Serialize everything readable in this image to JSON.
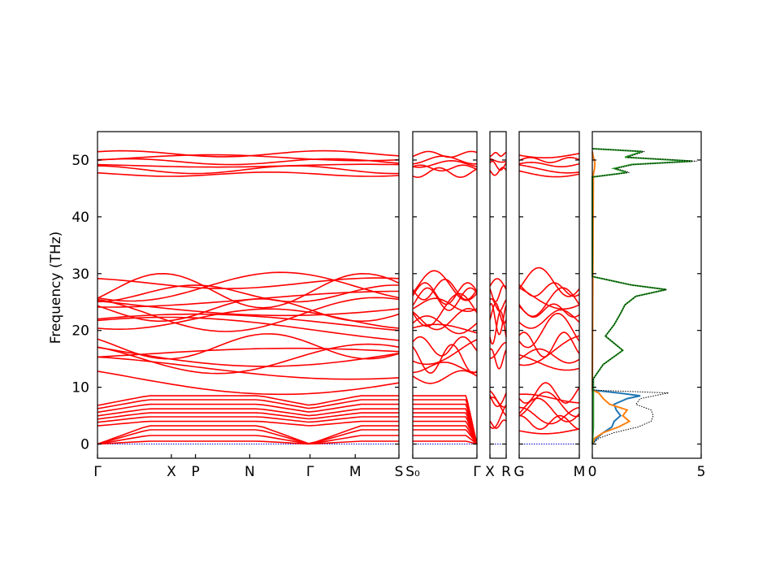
{
  "chart_data": {
    "type": "line",
    "ylabel": "Frequency (THz)",
    "ylim": [
      -2.5,
      55
    ],
    "y_ticks": [
      "0",
      "10",
      "20",
      "30",
      "40",
      "50"
    ],
    "band_color": "#ff0000",
    "zero_line_color": "#0000cc",
    "panels": [
      {
        "id": "path-1",
        "x_labels": [
          "Γ",
          "X",
          "P",
          "N",
          "Γ",
          "M",
          "S"
        ],
        "x_label_frac": [
          0,
          0.245,
          0.325,
          0.505,
          0.705,
          0.855,
          1.0
        ],
        "band_centers": [
          0.5,
          1.5,
          2.5,
          3.2,
          4.0,
          4.8,
          5.5,
          6.2,
          7.0,
          7.8,
          8.5,
          11.8,
          13.5,
          15.0,
          15.8,
          16.5,
          17.2,
          20.0,
          21.0,
          22.0,
          22.8,
          23.6,
          24.5,
          25.5,
          26.5,
          27.0,
          27.7,
          28.3,
          47.5,
          48.3,
          49.0,
          49.7,
          50.4,
          51.1
        ]
      },
      {
        "id": "path-2",
        "x_labels": [
          "S₀",
          "Γ"
        ],
        "x_label_frac": [
          0,
          1.0
        ],
        "band_centers": [
          0.5,
          1.5,
          2.5,
          3.2,
          4.0,
          4.8,
          5.5,
          6.2,
          7.0,
          7.8,
          8.5,
          11.8,
          13.5,
          15.0,
          16.5,
          17.2,
          20.0,
          21.0,
          22.0,
          23.6,
          24.5,
          25.5,
          26.5,
          27.2,
          27.9,
          47.8,
          48.6,
          49.3,
          50.0,
          51.0
        ]
      },
      {
        "id": "path-3",
        "x_labels": [
          "X",
          "R"
        ],
        "x_label_frac": [
          0,
          1.0
        ],
        "band_centers": [
          3.5,
          5.0,
          6.5,
          8.0,
          8.8,
          15.0,
          16.5,
          20.5,
          22.0,
          23.0,
          24.5,
          26.5,
          27.5,
          48.0,
          49.0,
          50.0,
          51.0
        ]
      },
      {
        "id": "path-4",
        "x_labels": [
          "G",
          "M"
        ],
        "x_label_frac": [
          0,
          1.0
        ],
        "band_centers": [
          2.5,
          3.8,
          5.0,
          6.0,
          7.0,
          8.0,
          9.0,
          14.5,
          15.5,
          16.5,
          17.5,
          20.0,
          22.0,
          23.5,
          25.0,
          26.0,
          27.2,
          28.5,
          47.8,
          48.5,
          49.2,
          50.0,
          51.0
        ]
      }
    ],
    "dos": {
      "xlim": [
        0,
        5
      ],
      "x_ticks": [
        "0",
        "5"
      ],
      "series": [
        {
          "color": "#1f77b4",
          "frequencies": [
            0,
            1,
            2,
            3,
            4,
            5,
            6,
            7,
            8,
            8.5,
            9,
            9.5
          ],
          "values": [
            0,
            0.2,
            0.5,
            0.9,
            1.0,
            1.3,
            1.1,
            1.0,
            1.6,
            2.2,
            1.2,
            0
          ]
        },
        {
          "color": "#ff7f0e",
          "frequencies": [
            0,
            1,
            2,
            3,
            4,
            5,
            6,
            7,
            8,
            8.5,
            9,
            9.5,
            47.5,
            48.5,
            49.5,
            50.5,
            51.5
          ],
          "values": [
            0,
            0.1,
            0.5,
            1.2,
            1.7,
            1.4,
            1.6,
            0.8,
            0.5,
            0.4,
            0.3,
            0,
            0.05,
            0.1,
            0.12,
            0.05,
            0
          ]
        },
        {
          "color": "#2ca02c",
          "frequencies": [
            0,
            3,
            6,
            9,
            11.5,
            14,
            16.5,
            19,
            21,
            23,
            24.5,
            26,
            27.2,
            28,
            29.5,
            47,
            47.8,
            48.5,
            49.2,
            49.8,
            50.5,
            51.5,
            52
          ],
          "values": [
            0,
            0.05,
            0.05,
            0.05,
            0.05,
            0.5,
            1.4,
            0.6,
            1.0,
            1.3,
            1.5,
            2.0,
            3.4,
            1.8,
            0,
            0,
            1.6,
            1.0,
            1.8,
            4.6,
            1.5,
            2.3,
            0
          ]
        },
        {
          "color": "#000000",
          "dashed": true,
          "frequencies": [
            0,
            1,
            2,
            3,
            4,
            5,
            6,
            7,
            8,
            9,
            9.5,
            11.5,
            14,
            16.5,
            19,
            21,
            23,
            24.5,
            26,
            27.2,
            28,
            29.5,
            47,
            47.8,
            48.5,
            49.2,
            49.8,
            50.5,
            51.5,
            52
          ],
          "values": [
            0,
            0.3,
            1.0,
            2.1,
            2.7,
            2.8,
            2.7,
            2.0,
            2.2,
            3.5,
            0,
            0.05,
            0.5,
            1.4,
            0.6,
            1.0,
            1.3,
            1.5,
            2.0,
            3.4,
            1.8,
            0,
            0,
            1.7,
            1.1,
            1.9,
            4.8,
            1.6,
            2.4,
            0
          ]
        }
      ]
    }
  }
}
